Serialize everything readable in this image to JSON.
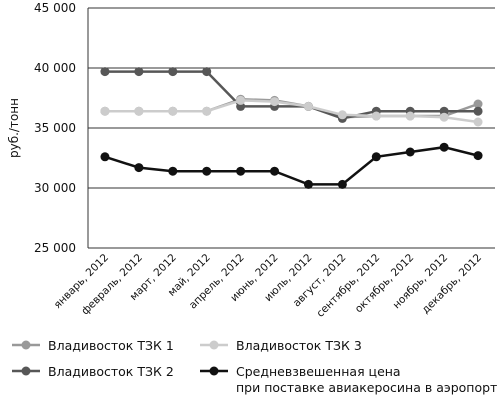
{
  "chart_data": {
    "type": "line",
    "y_label": "руб./тонн",
    "categories": [
      "январь, 2012",
      "февраль, 2012",
      "март, 2012",
      "май, 2012",
      "апрель, 2012",
      "июнь, 2012",
      "июль, 2012",
      "август, 2012",
      "сентябрь, 2012",
      "октябрь, 2012",
      "ноябрь, 2012",
      "декабрь, 2012"
    ],
    "series": [
      {
        "name": "Владивосток ТЗК 1",
        "color": "#999999",
        "values": [
          36400,
          36400,
          36400,
          36400,
          37400,
          37300,
          36800,
          35900,
          36000,
          36000,
          36000,
          37000
        ]
      },
      {
        "name": "Владивосток ТЗК 2",
        "color": "#575757",
        "values": [
          39700,
          39700,
          39700,
          39700,
          36800,
          36800,
          36800,
          35800,
          36400,
          36400,
          36400,
          36400
        ]
      },
      {
        "name": "Владивосток ТЗК 3",
        "color": "#cccccc",
        "values": [
          36400,
          36400,
          36400,
          36400,
          37300,
          37200,
          36800,
          36100,
          36000,
          36000,
          35900,
          35500
        ]
      },
      {
        "name": "Средневзвешенная цена\nпри поставке авиакеросина в аэропорт",
        "color": "#111111",
        "values": [
          32600,
          31700,
          31400,
          31400,
          31400,
          31400,
          30300,
          30300,
          32600,
          33000,
          33400,
          32700
        ]
      }
    ],
    "ylim": [
      25000,
      45000
    ],
    "yticks": [
      {
        "value": 25000,
        "label": "25 000"
      },
      {
        "value": 30000,
        "label": "30 000"
      },
      {
        "value": 35000,
        "label": "35 000"
      },
      {
        "value": 40000,
        "label": "40 000"
      },
      {
        "value": 45000,
        "label": "45 000"
      }
    ],
    "grid": true
  }
}
